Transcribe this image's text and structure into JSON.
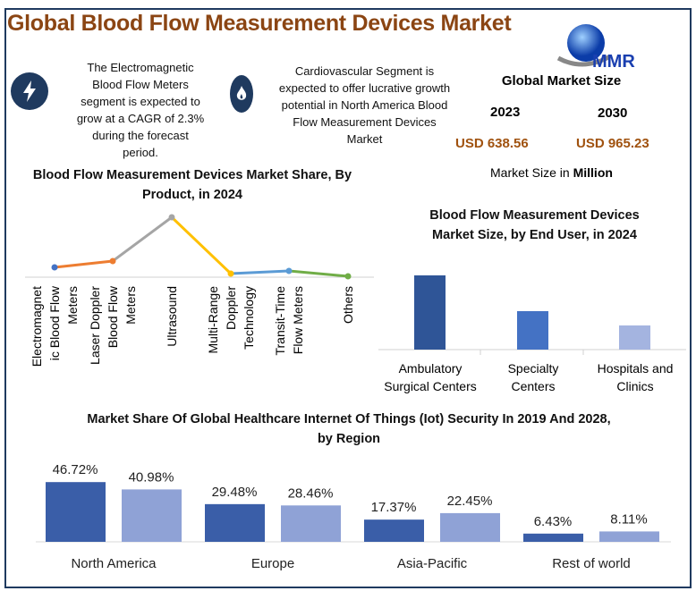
{
  "header": {
    "title": "Global Blood Flow Measurement Devices Market",
    "logo_text": "MMR"
  },
  "highlights": [
    {
      "icon": "lightning-bolt-icon",
      "text": "The Electromagnetic Blood Flow Meters segment is expected to grow at a CAGR of 2.3% during the forecast period."
    },
    {
      "icon": "flame-icon",
      "text": "Cardiovascular Segment is expected to offer lucrative growth potential in North America Blood Flow Measurement Devices Market"
    }
  ],
  "market_size": {
    "title": "Global Market Size",
    "year_a": "2023",
    "year_b": "2030",
    "value_a": "USD 638.56",
    "value_b": "USD 965.23",
    "unit_prefix": "Market Size in ",
    "unit_bold": "Million"
  },
  "colors": {
    "title": "#8b4513",
    "navy": "#1f3a5f",
    "usd": "#a0520f",
    "bar_dark": "#3a5ea8",
    "bar_light": "#8fa2d6"
  },
  "chart_data": [
    {
      "type": "line",
      "title": "Blood Flow Measurement Devices Market Share, By Product, in 2024",
      "categories": [
        "Electromagnetic Blood Flow Meters",
        "Laser Doppler Blood Flow Meters",
        "Ultrasound",
        "Multi-Range Doppler Technology",
        "Transit-Time Flow Meters",
        "Others"
      ],
      "category_labels": [
        [
          "Electromagnet",
          "ic Blood Flow",
          "Meters"
        ],
        [
          "Laser Doppler",
          "Blood Flow",
          "Meters"
        ],
        [
          "Ultrasound"
        ],
        [
          "Multi-Range",
          "Doppler",
          "Technology"
        ],
        [
          "Transit-Time",
          "Flow Meters"
        ],
        [
          "Others"
        ]
      ],
      "values": [
        11,
        18,
        67,
        4,
        7,
        1
      ],
      "segment_colors": [
        "#ed7d31",
        "#a5a5a5",
        "#ffc000",
        "#5b9bd5",
        "#70ad47"
      ],
      "point_colors": [
        "#4472c4",
        "#ed7d31",
        "#a5a5a5",
        "#ffc000",
        "#5b9bd5",
        "#70ad47"
      ],
      "grid": false
    },
    {
      "type": "bar",
      "title": "Blood Flow Measurement Devices Market Size, by End User, in 2024",
      "categories": [
        [
          "Ambulatory",
          "Surgical Centers"
        ],
        [
          "Specialty",
          "Centers"
        ],
        [
          "Hospitals and",
          "Clinics"
        ]
      ],
      "values": [
        83,
        43,
        27
      ],
      "colors": [
        "#2f5597",
        "#4472c4",
        "#a4b4e0"
      ],
      "grid": false
    },
    {
      "type": "bar",
      "title": "Market Share Of Global Healthcare Internet Of Things (Iot) Security In 2019 And 2028, by Region",
      "categories": [
        "North America",
        "Europe",
        "Asia-Pacific",
        "Rest of world"
      ],
      "series": [
        {
          "values": [
            46.72,
            29.48,
            17.37,
            6.43
          ],
          "labels": [
            "46.72%",
            "29.48%",
            "17.37%",
            "6.43%"
          ]
        },
        {
          "values": [
            40.98,
            28.46,
            22.45,
            8.11
          ],
          "labels": [
            "40.98%",
            "28.46%",
            "22.45%",
            "8.11%"
          ]
        }
      ],
      "grid": false
    }
  ]
}
